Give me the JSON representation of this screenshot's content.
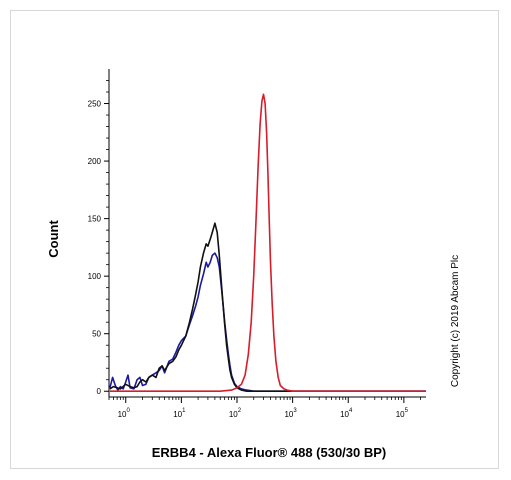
{
  "chart_data": {
    "type": "line",
    "xlabel": "ERBB4 - Alexa Fluor® 488 (530/30 BP)",
    "ylabel": "Count",
    "x_scale": "log",
    "xlim": [
      0.5,
      250000
    ],
    "ylim": [
      -5,
      280
    ],
    "x_ticks": [
      {
        "base": "10",
        "exp": "0",
        "value": 1
      },
      {
        "base": "10",
        "exp": "1",
        "value": 10
      },
      {
        "base": "10",
        "exp": "2",
        "value": 100
      },
      {
        "base": "10",
        "exp": "3",
        "value": 1000
      },
      {
        "base": "10",
        "exp": "4",
        "value": 10000
      },
      {
        "base": "10",
        "exp": "5",
        "value": 100000
      }
    ],
    "y_ticks": [
      0,
      50,
      100,
      150,
      200,
      250
    ],
    "grid": false,
    "series": [
      {
        "color": "#1a1aa0",
        "x": [
          0.52,
          0.58,
          0.65,
          0.72,
          0.8,
          0.9,
          1,
          1.1,
          1.2,
          1.4,
          1.6,
          1.8,
          2,
          2.3,
          2.6,
          3,
          3.5,
          4,
          4.5,
          5,
          6,
          7,
          8,
          9,
          10,
          12,
          14,
          16,
          18,
          20,
          22,
          25,
          28,
          30,
          33,
          36,
          40,
          44,
          48,
          52,
          56,
          60,
          65,
          70,
          75,
          80,
          90,
          100,
          120,
          150,
          200,
          300,
          500,
          1000,
          10000,
          250000
        ],
        "y": [
          3,
          12,
          5,
          1,
          4,
          2,
          8,
          14,
          3,
          2,
          10,
          12,
          5,
          6,
          12,
          14,
          16,
          18,
          22,
          16,
          26,
          28,
          34,
          40,
          44,
          48,
          58,
          66,
          74,
          82,
          92,
          102,
          112,
          108,
          112,
          118,
          120,
          116,
          108,
          92,
          76,
          60,
          45,
          32,
          22,
          14,
          7,
          4,
          2,
          1,
          0,
          0,
          0,
          0,
          0,
          0
        ]
      },
      {
        "color": "#111111",
        "x": [
          0.52,
          0.6,
          0.7,
          0.8,
          1,
          1.2,
          1.4,
          1.6,
          1.8,
          2,
          2.3,
          2.6,
          3,
          3.5,
          4,
          4.5,
          5,
          6,
          7,
          8,
          9,
          10,
          12,
          14,
          16,
          18,
          20,
          22,
          25,
          28,
          30,
          33,
          36,
          40,
          44,
          48,
          52,
          56,
          60,
          65,
          70,
          75,
          80,
          90,
          100,
          120,
          150,
          200,
          300,
          500,
          1000,
          10000,
          250000
        ],
        "y": [
          2,
          4,
          3,
          2,
          6,
          4,
          3,
          4,
          8,
          10,
          8,
          12,
          14,
          12,
          20,
          22,
          18,
          24,
          26,
          30,
          36,
          40,
          48,
          60,
          72,
          84,
          95,
          108,
          120,
          128,
          126,
          132,
          138,
          146,
          138,
          118,
          96,
          76,
          58,
          40,
          28,
          18,
          12,
          6,
          3,
          1,
          0,
          0,
          0,
          0,
          0,
          0,
          0
        ]
      },
      {
        "color": "#d81c2a",
        "x": [
          0.52,
          10,
          50,
          80,
          100,
          120,
          140,
          160,
          180,
          200,
          220,
          240,
          260,
          280,
          300,
          320,
          340,
          360,
          380,
          400,
          430,
          460,
          500,
          550,
          600,
          700,
          800,
          1000,
          2000,
          10000,
          250000
        ],
        "y": [
          0,
          0,
          0,
          1,
          3,
          6,
          14,
          32,
          60,
          100,
          148,
          195,
          232,
          252,
          258,
          250,
          225,
          190,
          150,
          112,
          76,
          48,
          26,
          12,
          5,
          2,
          1,
          0,
          0,
          0,
          0
        ]
      }
    ]
  },
  "copyright": "Copyright (c) 2019 Abcam Plc"
}
